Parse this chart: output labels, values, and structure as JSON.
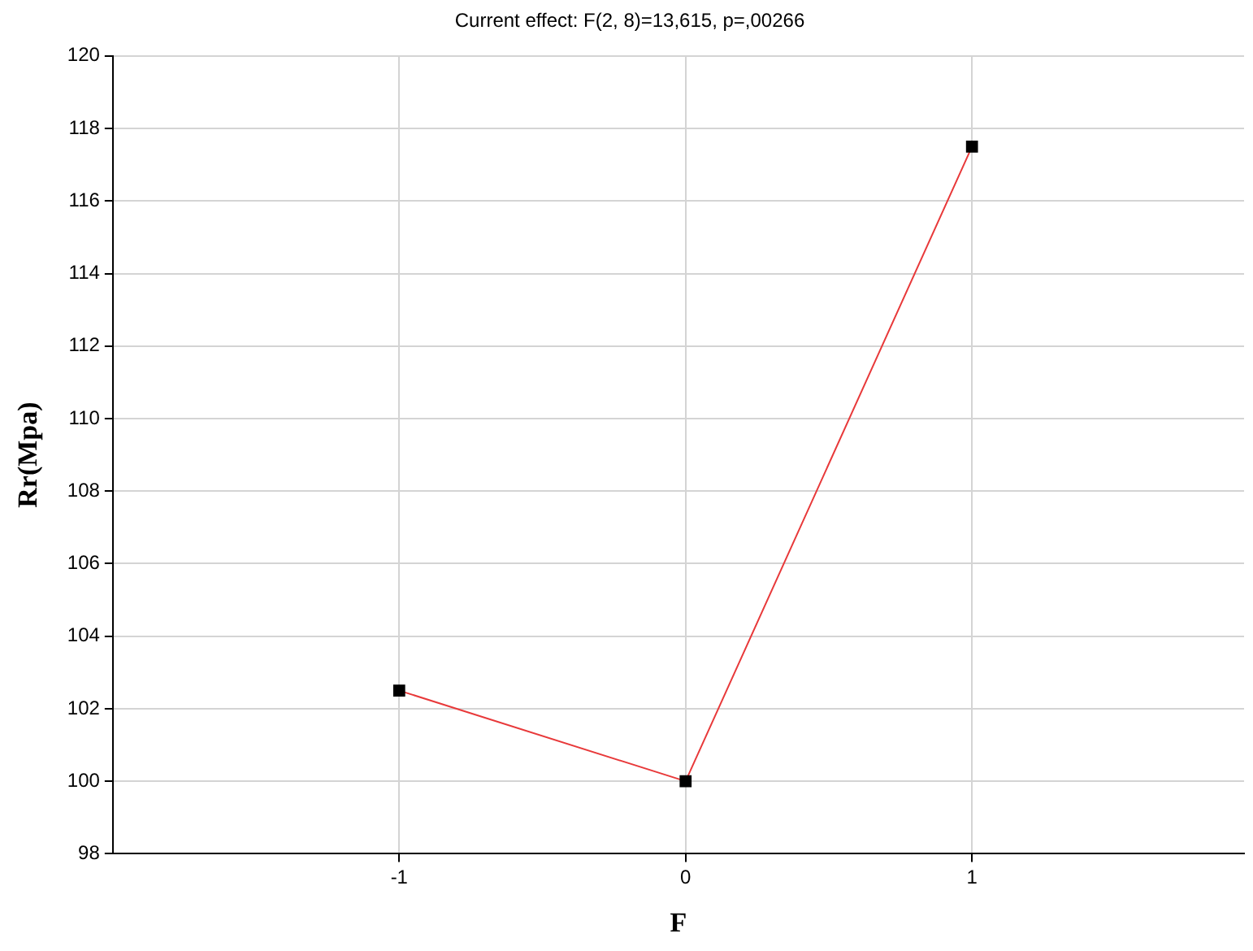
{
  "chart_data": {
    "type": "line",
    "title": "Current effect: F(2, 8)=13,615, p=,00266",
    "xlabel": "F",
    "ylabel": "Rr(Mpa)",
    "x": [
      -1,
      0,
      1
    ],
    "series": [
      {
        "color": "#e8393a",
        "values": [
          102.5,
          100,
          117.5
        ]
      }
    ],
    "xlim": [
      -2,
      1.95
    ],
    "xticks": [
      -1,
      0,
      1
    ],
    "ylim": [
      98,
      120
    ],
    "yticks": [
      98,
      100,
      102,
      104,
      106,
      108,
      110,
      112,
      114,
      116,
      118,
      120
    ],
    "grid": true,
    "legend": false,
    "marker": "square",
    "line_style": "solid"
  }
}
